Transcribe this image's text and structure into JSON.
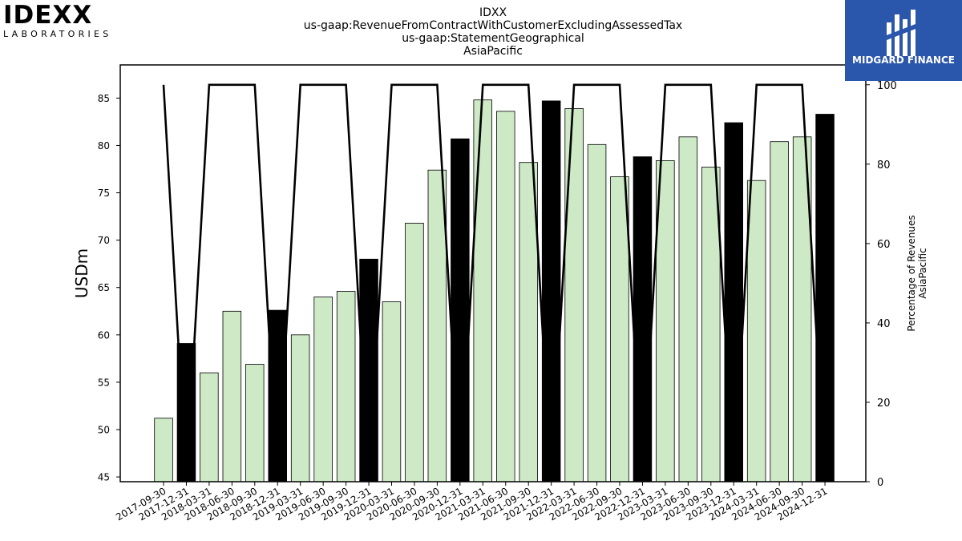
{
  "header": {
    "logo_text": "IDEXX",
    "logo_subtext": "LABORATORIES",
    "brand_text": "MIDGARD FINANCE"
  },
  "title_lines": [
    "IDXX",
    "us-gaap:RevenueFromContractWithCustomerExcludingAssessedTax",
    "us-gaap:StatementGeographical",
    "AsiaPacific"
  ],
  "chart_data": {
    "type": "bar",
    "categories": [
      "2017-09-30",
      "2017-12-31",
      "2018-03-31",
      "2018-06-30",
      "2018-09-30",
      "2018-12-31",
      "2019-03-31",
      "2019-06-30",
      "2019-09-30",
      "2019-12-31",
      "2020-03-31",
      "2020-06-30",
      "2020-09-30",
      "2020-12-31",
      "2021-03-31",
      "2021-06-30",
      "2021-09-30",
      "2021-12-31",
      "2022-03-31",
      "2022-06-30",
      "2022-09-30",
      "2022-12-31",
      "2023-03-31",
      "2023-06-30",
      "2023-09-30",
      "2023-12-31",
      "2024-03-31",
      "2024-06-30",
      "2024-09-30",
      "2024-12-31"
    ],
    "series": [
      {
        "axis": "left",
        "values": [
          51.2,
          59.1,
          56.0,
          62.5,
          56.9,
          62.6,
          60.0,
          64.0,
          64.6,
          68.0,
          63.5,
          71.8,
          77.4,
          80.7,
          84.8,
          83.6,
          78.2,
          84.7,
          83.9,
          80.1,
          76.7,
          78.8,
          78.4,
          80.9,
          77.7,
          82.4,
          76.3,
          80.4,
          80.9,
          83.3
        ],
        "highlight": [
          false,
          true,
          false,
          false,
          false,
          true,
          false,
          false,
          false,
          true,
          false,
          false,
          false,
          true,
          false,
          false,
          false,
          true,
          false,
          false,
          false,
          true,
          false,
          false,
          false,
          true,
          false,
          false,
          false,
          true
        ]
      },
      {
        "axis": "right",
        "type": "line",
        "values": [
          100,
          0,
          100,
          100,
          100,
          0,
          100,
          100,
          100,
          0,
          100,
          100,
          100,
          0,
          100,
          100,
          100,
          0,
          100,
          100,
          100,
          0,
          100,
          100,
          100,
          0,
          100,
          100,
          100,
          0
        ]
      }
    ],
    "ylabel": "USDm",
    "y2label_lines": [
      "Percentage of Revenues",
      "AsiaPacific"
    ],
    "ylim": [
      44.5,
      88.5
    ],
    "y2lim": [
      0,
      105
    ],
    "yticks": [
      45,
      50,
      55,
      60,
      65,
      70,
      75,
      80,
      85
    ],
    "y2ticks": [
      0,
      20,
      40,
      60,
      80,
      100
    ],
    "colors": {
      "bar": "#cde9c5",
      "bar_highlight": "#000000",
      "line": "#000000",
      "edge": "#000000"
    },
    "grid": false,
    "legend": "none"
  }
}
